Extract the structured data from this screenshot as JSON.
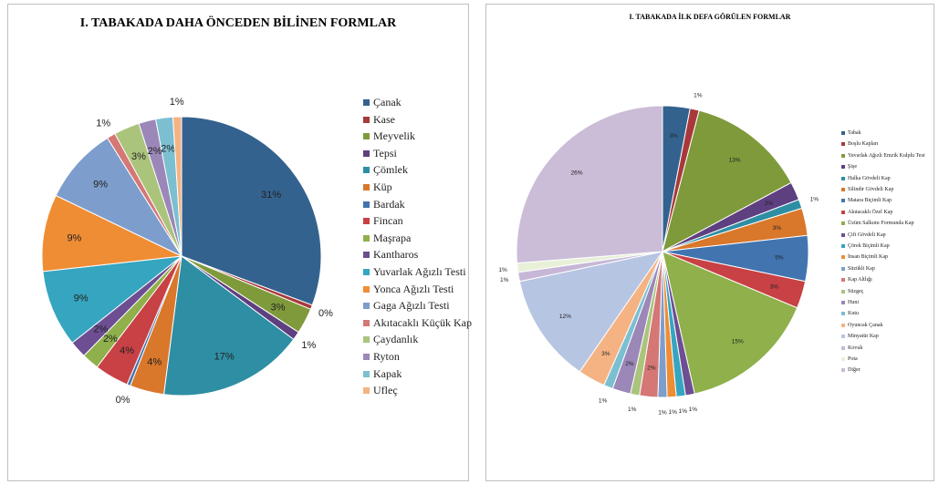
{
  "chart_data": [
    {
      "type": "pie",
      "title": "I. TABAKADA DAHA ÖNCEDEN BİLİNEN FORMLAR",
      "legend_position": "right",
      "categories": [
        "Çanak",
        "Kase",
        "Meyvelik",
        "Tepsi",
        "Çömlek",
        "Küp",
        "Bardak",
        "Fincan",
        "Maşrapa",
        "Kantharos",
        "Yuvarlak Ağızlı Testi",
        "Yonca Ağızlı Testi",
        "Gaga Ağızlı Testi",
        "Akıtacaklı Küçük Kap",
        "Çaydanlık",
        "Ryton",
        "Kapak",
        "Ufleç"
      ],
      "values": [
        31,
        0.5,
        3,
        1,
        17,
        4,
        0.4,
        4,
        2,
        2,
        9,
        9,
        9,
        1,
        3,
        2,
        2,
        1
      ],
      "data_labels": [
        "31%",
        "0%",
        "3%",
        "1%",
        "17%",
        "4%",
        "0%",
        "4%",
        "2%",
        "2%",
        "9%",
        "9%",
        "9%",
        "1%",
        "3%",
        "2%",
        "2%",
        "1%"
      ],
      "colors": [
        "#34628f",
        "#a8393a",
        "#7f9a3b",
        "#5e3f80",
        "#2e8ea3",
        "#d9772b",
        "#4274b0",
        "#c84144",
        "#8fb04a",
        "#6d4e93",
        "#36a5c0",
        "#ef8d35",
        "#7d9dcd",
        "#d47775",
        "#abc47c",
        "#9b87b8",
        "#7bbfd1",
        "#f5b383"
      ]
    },
    {
      "type": "pie",
      "title": "I. TABAKADA İLK DEFA GÖRÜLEN FORMLAR",
      "legend_position": "right",
      "categories": [
        "Tabak",
        "Boşlu Kapları",
        "Yuvarlak Ağızlı Emzik Kulplu Test",
        "Şişe",
        "Halka Gövdeli Kap",
        "Silindir Gövdeli Kap",
        "Matara Biçimli Kap",
        "Akıtacaklı Özel Kap",
        "Üzüm Salkımı Formunda Kap",
        "Çift Gövdeli Kap",
        "Çörek Biçimli Kap",
        "İnsan Biçimli Kap",
        "Süzükli Kap",
        "Kap Altlığı",
        "Süzgeç",
        "Huni",
        "Kutu",
        "Oyuncak Çanak",
        "Minyatür Kap",
        "Kovuk",
        "Pota",
        "Diğer"
      ],
      "values": [
        3,
        1,
        13,
        2,
        1,
        3,
        5,
        3,
        15,
        1,
        1,
        1,
        1,
        2,
        1,
        2,
        1,
        3,
        12,
        1,
        1,
        26
      ],
      "data_labels": [
        "3%",
        "1%",
        "13%",
        "2%",
        "1%",
        "3%",
        "5%",
        "3%",
        "15%",
        "1%",
        "1%",
        "1%",
        "1%",
        "2%",
        "1%",
        "2%",
        "1%",
        "3%",
        "12%",
        "1%",
        "1%",
        "26%"
      ],
      "colors": [
        "#34628f",
        "#a8393a",
        "#7f9a3b",
        "#5e3f80",
        "#2e8ea3",
        "#d9772b",
        "#4274b0",
        "#c84144",
        "#8fb04a",
        "#6d4e93",
        "#36a5c0",
        "#ef8d35",
        "#7d9dcd",
        "#d47775",
        "#abc47c",
        "#9b87b8",
        "#7bbfd1",
        "#f5b383",
        "#b6c5e2",
        "#c7b7d7",
        "#e8f0d8",
        "#cbbcd8"
      ]
    }
  ]
}
